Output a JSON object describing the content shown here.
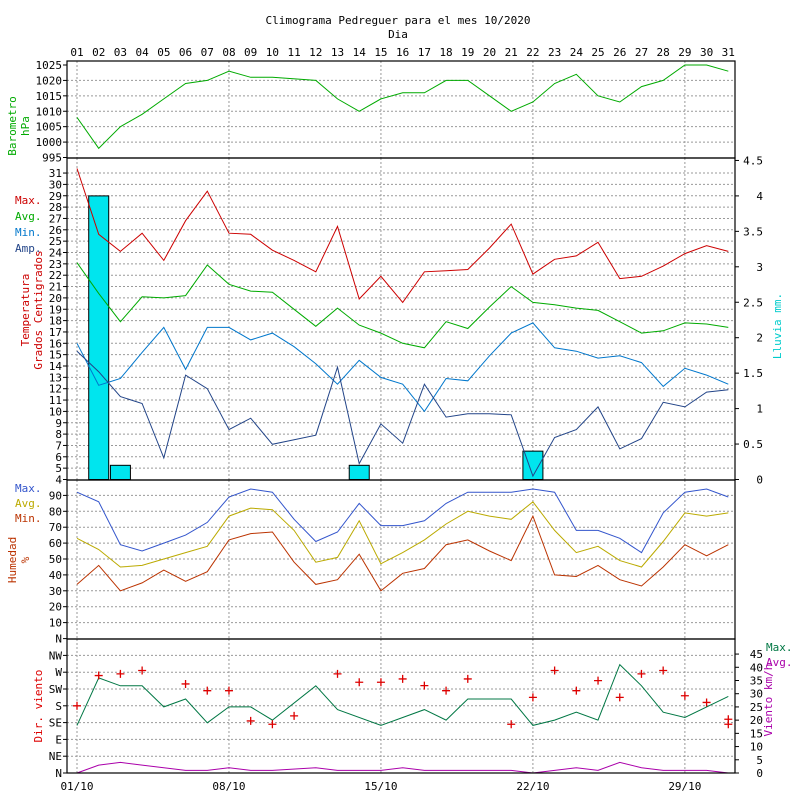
{
  "chart_data": [
    {
      "panel": "header",
      "type": "line",
      "title": "Climograma Pedreguer para el mes 10/2020",
      "xlabel": "Dia",
      "days": [
        "01",
        "02",
        "03",
        "04",
        "05",
        "06",
        "07",
        "08",
        "09",
        "10",
        "11",
        "12",
        "13",
        "14",
        "15",
        "16",
        "17",
        "18",
        "19",
        "20",
        "21",
        "22",
        "23",
        "24",
        "25",
        "26",
        "27",
        "28",
        "29",
        "30",
        "31"
      ],
      "date_labels": [
        {
          "day": 1,
          "text": "01/10"
        },
        {
          "day": 8,
          "text": "08/10"
        },
        {
          "day": 15,
          "text": "15/10"
        },
        {
          "day": 22,
          "text": "22/10"
        },
        {
          "day": 29,
          "text": "29/10"
        }
      ]
    },
    {
      "panel": "pressure",
      "type": "line",
      "ylabel": [
        "Barometro",
        "hPa"
      ],
      "ylim": [
        995,
        1025
      ],
      "yticks": [
        995,
        1000,
        1005,
        1010,
        1015,
        1020,
        1025
      ],
      "series": [
        {
          "name": "Barometro",
          "color": "#00aa00",
          "x": [
            1,
            2,
            3,
            4,
            5,
            6,
            7,
            8,
            9,
            10,
            12,
            13,
            14,
            15,
            16,
            17,
            18,
            19,
            20,
            21,
            22,
            23,
            24,
            25,
            26,
            27,
            28,
            29,
            30,
            31
          ],
          "values": [
            1008,
            998,
            1005,
            1009,
            1014,
            1019,
            1020,
            1023,
            1021,
            1021,
            1020,
            1014,
            1010,
            1014,
            1016,
            1016,
            1020,
            1020,
            1015,
            1010,
            1013,
            1019,
            1022,
            1015,
            1013,
            1018,
            1020,
            1025,
            1025,
            1023
          ]
        }
      ]
    },
    {
      "panel": "temperature",
      "type": "line",
      "ylabel": [
        "Temperatura",
        "Grados Centigrados"
      ],
      "ylim": [
        4,
        31.5
      ],
      "yticks": [
        4,
        5,
        6,
        7,
        8,
        9,
        10,
        11,
        12,
        13,
        14,
        15,
        16,
        17,
        18,
        19,
        20,
        21,
        22,
        23,
        24,
        25,
        26,
        27,
        28,
        29,
        30,
        31
      ],
      "y2label": "Lluvia mm.",
      "y2lim": [
        0,
        4.5
      ],
      "y2ticks": [
        "0",
        "0.5",
        "1",
        "1.5",
        "2",
        "2.5",
        "3",
        "3.5",
        "4",
        "4.5"
      ],
      "legend": [
        "Max.",
        "Avg.",
        "Min.",
        "Amp."
      ],
      "series": [
        {
          "name": "Max.",
          "color": "#cc0000",
          "values": [
            31.4,
            25.6,
            24.1,
            25.7,
            23.3,
            26.8,
            29.4,
            25.7,
            25.6,
            24.2,
            23.3,
            22.3,
            26.3,
            19.9,
            21.9,
            19.6,
            22.3,
            22.4,
            22.5,
            24.4,
            26.5,
            22.1,
            23.4,
            23.7,
            24.9,
            21.7,
            21.9,
            22.8,
            23.9,
            24.6,
            24.1
          ]
        },
        {
          "name": "Avg.",
          "color": "#00aa00",
          "values": [
            23.1,
            20.4,
            17.9,
            20.1,
            20.0,
            20.2,
            22.9,
            21.2,
            20.6,
            20.5,
            19.0,
            17.5,
            19.1,
            17.6,
            16.9,
            16.0,
            15.6,
            17.9,
            17.3,
            19.2,
            21.0,
            19.6,
            19.4,
            19.1,
            18.9,
            17.9,
            16.9,
            17.1,
            17.8,
            17.7,
            17.4
          ]
        },
        {
          "name": "Min.",
          "color": "#0077cc",
          "values": [
            16.0,
            12.3,
            12.9,
            15.2,
            17.4,
            13.7,
            17.4,
            17.4,
            16.3,
            16.9,
            15.7,
            14.2,
            12.4,
            14.5,
            13.0,
            12.4,
            10.0,
            12.9,
            12.7,
            14.9,
            16.9,
            17.8,
            15.6,
            15.3,
            14.7,
            14.9,
            14.3,
            12.2,
            13.8,
            13.2,
            12.4
          ]
        },
        {
          "name": "Amp.",
          "color": "#224488",
          "values": [
            15.3,
            13.5,
            11.3,
            10.7,
            5.9,
            13.2,
            12.0,
            8.4,
            9.4,
            7.1,
            7.5,
            7.9,
            13.9,
            5.4,
            8.9,
            7.2,
            12.4,
            9.5,
            9.8,
            9.8,
            9.7,
            4.3,
            7.7,
            8.4,
            10.4,
            6.7,
            7.6,
            10.8,
            10.4,
            11.7,
            11.9
          ]
        }
      ],
      "bars": {
        "name": "Lluvia mm.",
        "color": "#00e5ee",
        "values": [
          0,
          4.0,
          0.2,
          0,
          0,
          0,
          0,
          0,
          0,
          0,
          0,
          0,
          0,
          0.2,
          0,
          0,
          0,
          0,
          0,
          0,
          0,
          0.4,
          0,
          0,
          0,
          0,
          0,
          0,
          0,
          0,
          0
        ]
      }
    },
    {
      "panel": "humidity",
      "type": "line",
      "ylabel": [
        "Humedad",
        "%"
      ],
      "ylim": [
        0,
        100
      ],
      "yticks": [
        10,
        20,
        30,
        40,
        50,
        60,
        70,
        80,
        90
      ],
      "legend": [
        "Max.",
        "Avg.",
        "Min."
      ],
      "series": [
        {
          "name": "Max.",
          "color": "#3355cc",
          "values": [
            92,
            86,
            59,
            55,
            60,
            65,
            73,
            89,
            94,
            92,
            75,
            61,
            67,
            85,
            71,
            71,
            74,
            85,
            92,
            92,
            92,
            94,
            92,
            68,
            68,
            63,
            54,
            79,
            92,
            94,
            89
          ]
        },
        {
          "name": "Avg.",
          "color": "#bbaa00",
          "values": [
            63,
            56,
            45,
            46,
            50,
            54,
            58,
            77,
            82,
            81,
            68,
            48,
            51,
            74,
            47,
            54,
            62,
            72,
            80,
            77,
            75,
            86,
            68,
            54,
            58,
            49,
            45,
            61,
            79,
            77,
            79
          ]
        },
        {
          "name": "Min.",
          "color": "#bb3300",
          "values": [
            34,
            46,
            30,
            35,
            43,
            36,
            42,
            62,
            66,
            67,
            48,
            34,
            37,
            53,
            30,
            41,
            44,
            59,
            62,
            55,
            49,
            77,
            40,
            39,
            46,
            37,
            33,
            45,
            59,
            52,
            59
          ]
        }
      ]
    },
    {
      "panel": "wind",
      "type": "scatter",
      "ylabel": "Dir. viento",
      "directions": [
        "N",
        "NE",
        "E",
        "SE",
        "S",
        "SW",
        "W",
        "NW",
        "N"
      ],
      "y2label": "Viento km/h",
      "y2lim": [
        0,
        45
      ],
      "y2ticks": [
        0,
        5,
        10,
        15,
        20,
        25,
        30,
        35,
        40,
        45
      ],
      "legend": [
        "Max.",
        "Avg."
      ],
      "direction_points": {
        "name": "Dir. viento",
        "color": "#dd0000",
        "values": [
          4,
          5.8,
          5.9,
          6.1,
          5.3,
          4.9,
          4.9,
          3.1,
          2.9,
          3.4,
          5.9,
          5.4,
          5.4,
          5.6,
          5.2,
          4.9,
          5.6,
          2.9,
          4.5,
          6.1,
          4.9,
          5.5,
          4.5,
          5.9,
          6.1,
          4.6,
          4.2,
          3.2,
          2.9
        ]
      },
      "direction_days": [
        1,
        2,
        3,
        4,
        6,
        7,
        8,
        9,
        10,
        11,
        13,
        14,
        15,
        16,
        17,
        18,
        19,
        21,
        22,
        23,
        24,
        25,
        26,
        27,
        28,
        29,
        30,
        31,
        31
      ],
      "series": [
        {
          "name": "Max.",
          "color": "#007744",
          "x": [
            1,
            2,
            3,
            4,
            5,
            6,
            7,
            8,
            9,
            10,
            12,
            13,
            15,
            16,
            17,
            18,
            19,
            20,
            21,
            22,
            23,
            24,
            25,
            26,
            27,
            28,
            29,
            31
          ],
          "values": [
            18,
            36,
            33,
            33,
            25,
            28,
            19,
            25,
            25,
            20,
            33,
            24,
            18,
            21,
            24,
            20,
            28,
            28,
            28,
            18,
            20,
            23,
            20,
            41,
            33,
            23,
            21,
            29
          ]
        },
        {
          "name": "Avg.",
          "color": "#aa00aa",
          "x": [
            1,
            2,
            3,
            4,
            5,
            6,
            7,
            8,
            9,
            10,
            12,
            13,
            15,
            16,
            17,
            18,
            19,
            20,
            21,
            22,
            23,
            24,
            25,
            26,
            27,
            28,
            29,
            30,
            31
          ],
          "values": [
            0,
            3,
            4,
            3,
            2,
            1,
            1,
            2,
            1,
            1,
            2,
            1,
            1,
            2,
            1,
            1,
            1,
            1,
            1,
            0,
            1,
            2,
            1,
            4,
            2,
            1,
            1,
            1,
            0
          ]
        }
      ]
    }
  ]
}
